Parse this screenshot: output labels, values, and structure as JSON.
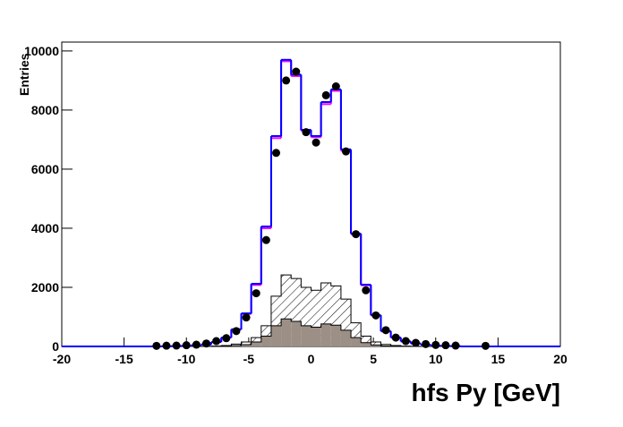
{
  "chart_data": {
    "type": "histogram",
    "y_label": "Entries",
    "x_label": "hfs Py [GeV]",
    "xlim": [
      -20,
      20
    ],
    "ylim": [
      0,
      10300
    ],
    "xticks": [
      -20,
      -15,
      -10,
      -5,
      0,
      5,
      10,
      15,
      20
    ],
    "yticks": [
      0,
      2000,
      4000,
      6000,
      8000,
      10000
    ],
    "bins": [
      -20,
      -19.2,
      -18.4,
      -17.6,
      -16.8,
      -16,
      -15.2,
      -14.4,
      -13.6,
      -12.8,
      -12,
      -11.2,
      -10.4,
      -9.6,
      -8.8,
      -8,
      -7.2,
      -6.4,
      -5.6,
      -4.8,
      -4,
      -3.2,
      -2.4,
      -1.6,
      -0.8,
      0,
      0.8,
      1.6,
      2.4,
      3.2,
      4,
      4.8,
      5.6,
      6.4,
      7.2,
      8,
      8.8,
      9.6,
      10.4,
      11.2,
      12,
      12.8,
      13.6,
      14.4,
      15.2,
      16,
      16.8,
      17.6,
      18.4,
      19.2,
      20
    ],
    "series": [
      {
        "style": "hatched",
        "color": "#000000",
        "values": [
          0,
          0,
          0,
          0,
          0,
          0,
          0,
          0,
          0,
          0,
          0,
          0,
          0,
          0,
          5,
          10,
          30,
          80,
          150,
          300,
          700,
          1700,
          2420,
          2300,
          2000,
          1900,
          2150,
          2050,
          1600,
          800,
          350,
          150,
          70,
          30,
          10,
          5,
          0,
          0,
          0,
          0,
          0,
          0,
          0,
          0,
          0,
          0,
          0,
          0,
          0,
          0
        ]
      },
      {
        "style": "filled",
        "color": "#9c8f86",
        "values": [
          0,
          0,
          0,
          0,
          0,
          0,
          0,
          0,
          0,
          0,
          0,
          0,
          0,
          0,
          0,
          5,
          15,
          30,
          60,
          150,
          350,
          700,
          930,
          850,
          700,
          650,
          760,
          720,
          550,
          300,
          130,
          50,
          20,
          10,
          0,
          0,
          0,
          0,
          0,
          0,
          0,
          0,
          0,
          0,
          0,
          0,
          0,
          0,
          0,
          0
        ]
      },
      {
        "style": "line",
        "color": "#ff00ff",
        "values": [
          0,
          0,
          0,
          0,
          0,
          0,
          0,
          0,
          0,
          0,
          5,
          10,
          20,
          40,
          70,
          150,
          300,
          570,
          1100,
          2080,
          4000,
          7050,
          9650,
          9150,
          7300,
          7080,
          8200,
          8650,
          6620,
          3800,
          2070,
          1050,
          510,
          300,
          170,
          100,
          60,
          30,
          15,
          8,
          0,
          0,
          0,
          0,
          0,
          0,
          0,
          0,
          0,
          0
        ]
      },
      {
        "style": "line",
        "color": "#0000ff",
        "values": [
          0,
          0,
          0,
          0,
          0,
          0,
          0,
          0,
          0,
          0,
          5,
          10,
          20,
          40,
          70,
          150,
          300,
          580,
          1120,
          2120,
          4060,
          7120,
          9700,
          9200,
          7330,
          7120,
          8270,
          8700,
          6670,
          3820,
          2090,
          1060,
          520,
          300,
          170,
          100,
          60,
          30,
          15,
          8,
          0,
          0,
          0,
          0,
          0,
          0,
          0,
          0,
          0,
          0
        ]
      }
    ],
    "points": {
      "color": "#000000",
      "values": [
        null,
        null,
        null,
        null,
        null,
        null,
        null,
        null,
        null,
        20,
        25,
        30,
        40,
        60,
        100,
        180,
        280,
        520,
        980,
        1800,
        3600,
        6550,
        9000,
        9300,
        7250,
        6900,
        8500,
        8800,
        6600,
        3800,
        1900,
        1050,
        550,
        300,
        180,
        120,
        80,
        50,
        40,
        30,
        null,
        null,
        20,
        null,
        null,
        null,
        null,
        null,
        null,
        null
      ]
    }
  }
}
